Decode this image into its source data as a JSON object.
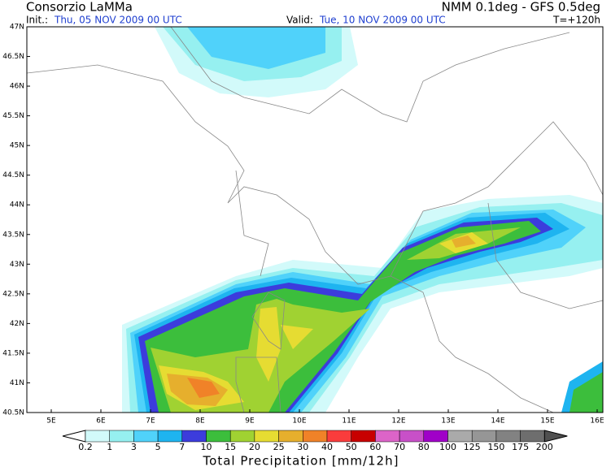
{
  "header": {
    "org": "Consorzio LaMMa",
    "model": "NMM 0.1deg - GFS 0.5deg",
    "init_label": "Init.:",
    "init_time": "Thu, 05 NOV 2009  00 UTC",
    "valid_label": "Valid:",
    "valid_time": "Tue, 10 NOV 2009  00 UTC",
    "lead": "T=+120h"
  },
  "map": {
    "lat_labels": [
      "40.5N",
      "41N",
      "41.5N",
      "42N",
      "42.5N",
      "43N",
      "43.5N",
      "44N",
      "44.5N",
      "45N",
      "45.5N",
      "46N",
      "46.5N",
      "47N"
    ],
    "lon_labels": [
      "5E",
      "6E",
      "7E",
      "8E",
      "9E",
      "10E",
      "11E",
      "12E",
      "13E",
      "14E",
      "15E",
      "16E"
    ]
  },
  "colorbar": {
    "labels": [
      "0.2",
      "1",
      "3",
      "5",
      "7",
      "10",
      "15",
      "20",
      "25",
      "30",
      "40",
      "50",
      "60",
      "70",
      "80",
      "100",
      "125",
      "150",
      "175",
      "200"
    ],
    "colors": [
      "#ffffff",
      "#d2fafa",
      "#96f0f0",
      "#50d2fa",
      "#1eb4f0",
      "#3c3cdc",
      "#3cbe3c",
      "#a0d232",
      "#e6dc32",
      "#e6af2d",
      "#f08228",
      "#fa3c3c",
      "#c80000",
      "#dc64c8",
      "#c850c8",
      "#a000c8",
      "#aaaaaa",
      "#969696",
      "#828282",
      "#6e6e6e",
      "#505050"
    ],
    "title": "Total Precipitation [mm/12h]"
  }
}
